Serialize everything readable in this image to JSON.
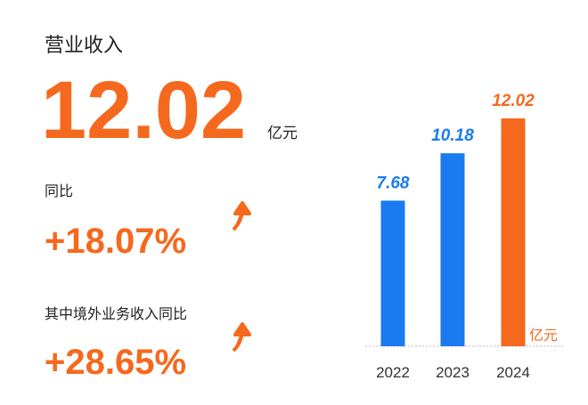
{
  "header": {
    "title": "营业收入",
    "value": "12.02",
    "unit": "亿元"
  },
  "metrics": [
    {
      "label": "同比",
      "value": "+18.07%"
    },
    {
      "label": "其中境外业务收入同比",
      "value": "+28.65%"
    }
  ],
  "chart_data": {
    "type": "bar",
    "categories": [
      "2022",
      "2023",
      "2024"
    ],
    "values": [
      7.68,
      10.18,
      12.02
    ],
    "colors": [
      "#1a7bf0",
      "#1a7bf0",
      "#f5691e"
    ],
    "unit": "亿元"
  }
}
